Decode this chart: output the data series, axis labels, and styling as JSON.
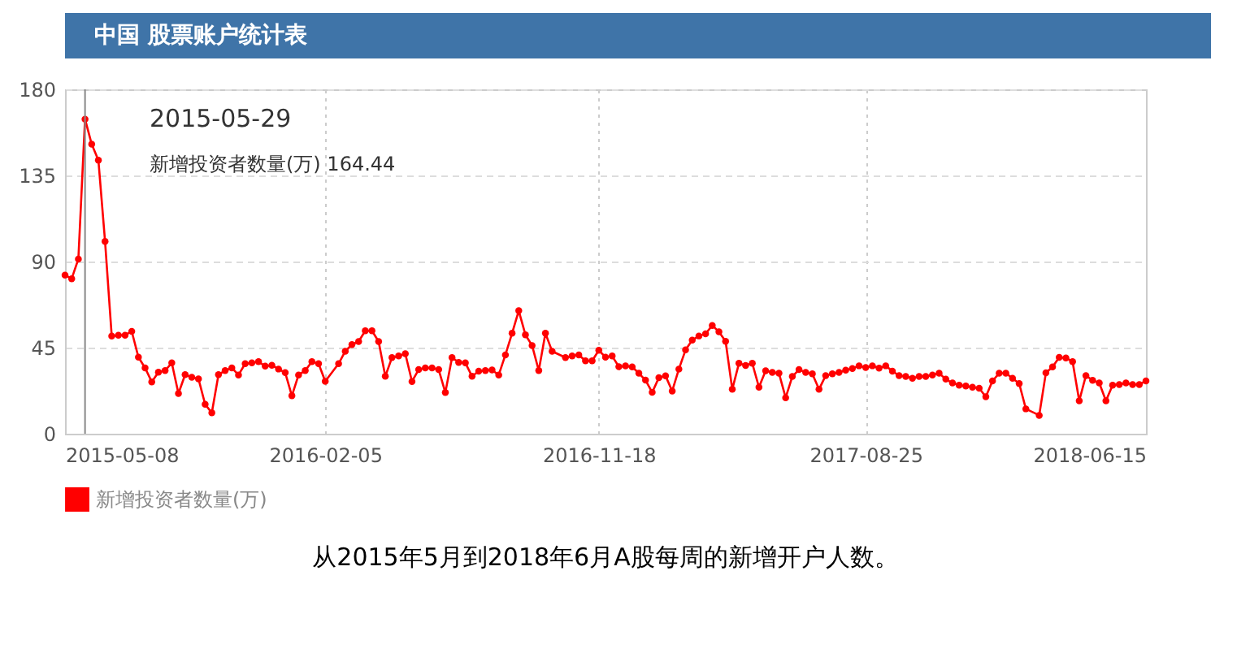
{
  "chart_data": {
    "type": "line",
    "title": "中国 股票账户统计表",
    "x": [
      "2015-05-08",
      "2015-05-15",
      "2015-05-22",
      "2015-05-29",
      "2015-06-05",
      "2015-06-12",
      "2015-06-19",
      "2015-06-26",
      "2015-07-03",
      "2015-07-10",
      "2015-07-17",
      "2015-07-24",
      "2015-07-31",
      "2015-08-07",
      "2015-08-14",
      "2015-08-21",
      "2015-08-28",
      "2015-09-04",
      "2015-09-11",
      "2015-09-18",
      "2015-09-25",
      "2015-10-02",
      "2015-10-09",
      "2015-10-16",
      "2015-10-23",
      "2015-10-30",
      "2015-11-06",
      "2015-11-13",
      "2015-11-20",
      "2015-11-27",
      "2015-12-04",
      "2015-12-11",
      "2015-12-18",
      "2015-12-25",
      "2016-01-01",
      "2016-01-08",
      "2016-01-15",
      "2016-01-22",
      "2016-01-29",
      "2016-02-05",
      "2016-02-19",
      "2016-02-26",
      "2016-03-04",
      "2016-03-11",
      "2016-03-18",
      "2016-03-25",
      "2016-04-01",
      "2016-04-08",
      "2016-04-15",
      "2016-04-22",
      "2016-04-29",
      "2016-05-06",
      "2016-05-13",
      "2016-05-20",
      "2016-05-27",
      "2016-06-03",
      "2016-06-10",
      "2016-06-17",
      "2016-06-24",
      "2016-07-01",
      "2016-07-08",
      "2016-07-15",
      "2016-07-22",
      "2016-07-29",
      "2016-08-05",
      "2016-08-12",
      "2016-08-19",
      "2016-08-26",
      "2016-09-02",
      "2016-09-09",
      "2016-09-16",
      "2016-09-23",
      "2016-09-30",
      "2016-10-14",
      "2016-10-21",
      "2016-10-28",
      "2016-11-04",
      "2016-11-11",
      "2016-11-18",
      "2016-11-25",
      "2016-12-02",
      "2016-12-09",
      "2016-12-16",
      "2016-12-23",
      "2016-12-30",
      "2017-01-06",
      "2017-01-13",
      "2017-01-20",
      "2017-01-27",
      "2017-02-03",
      "2017-02-10",
      "2017-02-17",
      "2017-02-24",
      "2017-03-03",
      "2017-03-10",
      "2017-03-17",
      "2017-03-24",
      "2017-03-31",
      "2017-04-07",
      "2017-04-14",
      "2017-04-21",
      "2017-04-28",
      "2017-05-05",
      "2017-05-12",
      "2017-05-19",
      "2017-05-26",
      "2017-06-02",
      "2017-06-09",
      "2017-06-16",
      "2017-06-23",
      "2017-06-30",
      "2017-07-07",
      "2017-07-14",
      "2017-07-21",
      "2017-07-28",
      "2017-08-04",
      "2017-08-11",
      "2017-08-18",
      "2017-08-25",
      "2017-09-01",
      "2017-09-08",
      "2017-09-15",
      "2017-09-22",
      "2017-09-29",
      "2017-10-06",
      "2017-10-13",
      "2017-10-20",
      "2017-10-27",
      "2017-11-03",
      "2017-11-10",
      "2017-11-17",
      "2017-11-24",
      "2017-12-01",
      "2017-12-08",
      "2017-12-15",
      "2017-12-22",
      "2017-12-29",
      "2018-01-05",
      "2018-01-12",
      "2018-01-19",
      "2018-01-26",
      "2018-02-02",
      "2018-02-09",
      "2018-02-23",
      "2018-03-02",
      "2018-03-09",
      "2018-03-16",
      "2018-03-23",
      "2018-03-30",
      "2018-04-06",
      "2018-04-13",
      "2018-04-20",
      "2018-04-27",
      "2018-05-04",
      "2018-05-11",
      "2018-05-18",
      "2018-05-25",
      "2018-06-01",
      "2018-06-08",
      "2018-06-15"
    ],
    "series": [
      {
        "name": "新增投资者数量(万)",
        "color": "#ff0000",
        "values": [
          82.9,
          81,
          91.3,
          164.44,
          151.3,
          143,
          100.5,
          51,
          51.5,
          51.5,
          53.5,
          40,
          34.4,
          27.1,
          32.2,
          33,
          37,
          21,
          30.9,
          29.5,
          28.7,
          15.4,
          10.9,
          30.9,
          33,
          34.4,
          30.7,
          36.6,
          37,
          37.7,
          35.3,
          35.8,
          33.8,
          31.9,
          19.8,
          30.7,
          33,
          37.7,
          36.6,
          27.4,
          36.6,
          43.1,
          46.6,
          48.2,
          53.8,
          53.8,
          48.2,
          30,
          39.8,
          40.6,
          41.8,
          27.3,
          33.5,
          34.4,
          34.4,
          33.5,
          21.5,
          39.8,
          37.3,
          37,
          30,
          32.7,
          33,
          33.3,
          30.7,
          41.2,
          52.5,
          64.3,
          51.7,
          46.1,
          33,
          52.5,
          43.1,
          39.8,
          40.6,
          41.2,
          38.1,
          38.1,
          43.6,
          40,
          40.6,
          35,
          35.4,
          34.9,
          31.6,
          28,
          21.6,
          29.3,
          30.2,
          22.3,
          33.8,
          43.8,
          48.9,
          51.1,
          52.2,
          56.6,
          53.3,
          48.3,
          23.2,
          36.8,
          35.7,
          36.8,
          24.3,
          32.9,
          32.1,
          31.6,
          18.8,
          29.9,
          33.5,
          32.1,
          31.3,
          23.2,
          30.4,
          31.3,
          32.1,
          33.2,
          34.1,
          35.5,
          34.6,
          35.5,
          34.3,
          35.5,
          32.7,
          30.4,
          29.9,
          29,
          29.9,
          29.9,
          30.7,
          31.6,
          28.5,
          26.5,
          25.4,
          24.9,
          24.3,
          23.8,
          19.3,
          27.6,
          31.6,
          31.6,
          29,
          26.2,
          13,
          9.6,
          31.8,
          34.9,
          39.9,
          39.6,
          37.7,
          17.2,
          30.4,
          27.9,
          26.5,
          17.2,
          25.4,
          25.7,
          26.5,
          25.7,
          25.7,
          27.6
        ]
      }
    ],
    "xlim": [
      "2015-05-08",
      "2018-06-15"
    ],
    "xticks": [
      "2015-05-08",
      "2016-02-05",
      "2016-11-18",
      "2017-08-25",
      "2018-06-15"
    ],
    "ylim": [
      0,
      180
    ],
    "yticks": [
      0,
      45,
      90,
      135,
      180
    ],
    "ref_lines": [
      {
        "axis": "x",
        "value": "2015-05-29",
        "color": "#888888"
      }
    ],
    "annotations": [
      "2015-05-29",
      "新增投资者数量(万) 164.44",
      "从2015年5月到2018年6月A股每周的新增开户人数。"
    ],
    "grid": true,
    "legend": "bottom",
    "marker": "circle",
    "line_style": "solid"
  }
}
